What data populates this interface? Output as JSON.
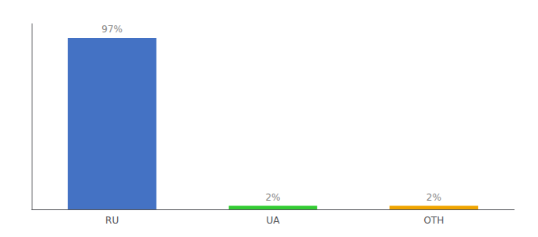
{
  "chart_data": {
    "type": "bar",
    "categories": [
      "RU",
      "UA",
      "OTH"
    ],
    "values": [
      97,
      2,
      2
    ],
    "value_labels": [
      "97%",
      "2%",
      "2%"
    ],
    "colors": [
      "#4472c4",
      "#33cc33",
      "#f0a500"
    ],
    "ylim": [
      0,
      105
    ],
    "data_labels": true,
    "tick_labels": "x",
    "grid": false
  }
}
